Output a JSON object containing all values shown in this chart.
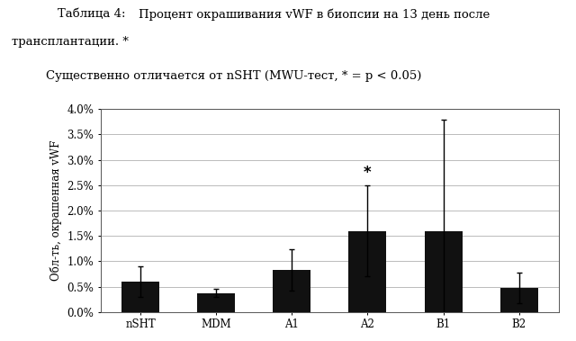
{
  "categories": [
    "nSHT",
    "MDM",
    "A1",
    "A2",
    "B1",
    "B2"
  ],
  "values": [
    0.006,
    0.0037,
    0.0083,
    0.016,
    0.016,
    0.0047
  ],
  "errors": [
    0.003,
    0.0008,
    0.004,
    0.009,
    0.022,
    0.003
  ],
  "bar_color": "#111111",
  "title_line1": "Таблица 4:",
  "title_line1b": "Процент окрашивания vWF в биопсии на 13 день после",
  "title_line2": "трансплантации. *",
  "subtitle": "Существенно отличается от nSHT (MWU-тест, * = p < 0.05)",
  "ylabel": "Обл-ть, окрашенная vWF",
  "ylim": [
    0,
    0.04
  ],
  "yticks": [
    0.0,
    0.005,
    0.01,
    0.015,
    0.02,
    0.025,
    0.03,
    0.035,
    0.04
  ],
  "ytick_labels": [
    "0.0%",
    "0.5%",
    "1.0%",
    "1.5%",
    "2.0%",
    "2.5%",
    "3.0%",
    "3.5%",
    "4.0%"
  ],
  "significant_bar": "A2",
  "background_color": "#ffffff",
  "grid_color": "#bbbbbb",
  "text_fontsize": 9.5,
  "axis_fontsize": 8.5
}
